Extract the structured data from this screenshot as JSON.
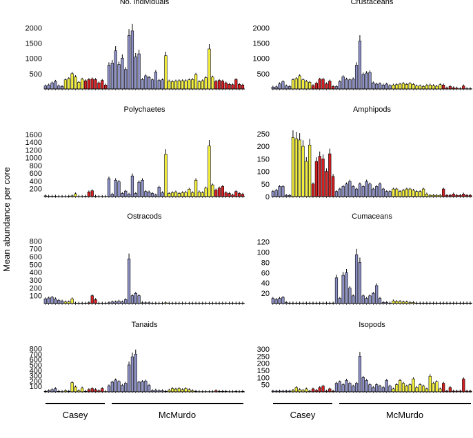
{
  "ylabel": "Mean abundance per core",
  "sites": [
    "Casey",
    "McMurdo"
  ],
  "colors": {
    "blue": "#8e91c6",
    "yellow": "#f2ee3c",
    "red": "#d62024",
    "axis": "#000000"
  },
  "chart_data": [
    {
      "type": "bar",
      "title": "No. individuals",
      "yticks": [
        500,
        1000,
        1500,
        2000
      ],
      "ylim": [
        0,
        2100
      ],
      "series": [
        {
          "color": "blue",
          "values": [
            100,
            130,
            200,
            250,
            100,
            80
          ]
        },
        {
          "color": "yellow",
          "values": [
            300,
            340,
            500,
            400,
            220,
            320
          ]
        },
        {
          "color": "red",
          "values": [
            270,
            310,
            330,
            310,
            200,
            280,
            130
          ]
        },
        {
          "color": "blue",
          "values": [
            780,
            850,
            1250,
            800,
            1010,
            640,
            1750,
            1900,
            1050,
            1150,
            310,
            430,
            380,
            300,
            550,
            280,
            300
          ]
        },
        {
          "color": "yellow",
          "values": [
            1090,
            260,
            240,
            260,
            270,
            270,
            270,
            300,
            310,
            470,
            240,
            270,
            370,
            1310,
            390
          ]
        },
        {
          "color": "red",
          "values": [
            250,
            280,
            260,
            200,
            150,
            140,
            310,
            150,
            130
          ]
        }
      ]
    },
    {
      "type": "bar",
      "title": "Crustaceans",
      "yticks": [
        500,
        1000,
        1500,
        2000
      ],
      "ylim": [
        0,
        2100
      ],
      "series": [
        {
          "color": "blue",
          "values": [
            60,
            70,
            170,
            240,
            100,
            80
          ]
        },
        {
          "color": "yellow",
          "values": [
            300,
            340,
            430,
            300,
            250,
            220
          ]
        },
        {
          "color": "red",
          "values": [
            110,
            190,
            320,
            320,
            170,
            260,
            80
          ]
        },
        {
          "color": "blue",
          "values": [
            80,
            240,
            400,
            320,
            300,
            330,
            780,
            1570,
            480,
            520,
            540,
            200,
            160,
            170,
            130,
            160,
            110
          ]
        },
        {
          "color": "yellow",
          "values": [
            130,
            140,
            160,
            180,
            150,
            180,
            150,
            100,
            100,
            80,
            120,
            130,
            110,
            90,
            140
          ]
        },
        {
          "color": "red",
          "values": [
            130,
            30,
            80,
            40,
            30,
            10,
            100,
            10,
            10
          ]
        }
      ]
    },
    {
      "type": "bar",
      "title": "Polychaetes",
      "yticks": [
        200,
        400,
        600,
        800,
        1000,
        1200,
        1400,
        1600
      ],
      "ylim": [
        0,
        1650
      ],
      "series": [
        {
          "color": "blue",
          "values": [
            20,
            10,
            10,
            10,
            5,
            5
          ]
        },
        {
          "color": "yellow",
          "values": [
            5,
            10,
            20,
            70,
            5,
            5
          ]
        },
        {
          "color": "red",
          "values": [
            10,
            120,
            150,
            10,
            5,
            5,
            5
          ]
        },
        {
          "color": "blue",
          "values": [
            460,
            60,
            420,
            380,
            80,
            140,
            60,
            530,
            80,
            370,
            420,
            130,
            120,
            80,
            40,
            240,
            100
          ]
        },
        {
          "color": "yellow",
          "values": [
            1090,
            80,
            100,
            120,
            80,
            100,
            110,
            190,
            100,
            420,
            120,
            100,
            220,
            1300,
            300
          ]
        },
        {
          "color": "red",
          "values": [
            170,
            220,
            260,
            100,
            80,
            40,
            130,
            80,
            60
          ]
        }
      ]
    },
    {
      "type": "bar",
      "title": "Amphipods",
      "yticks": [
        0,
        50,
        100,
        150,
        200,
        250
      ],
      "ylim": [
        0,
        255
      ],
      "series": [
        {
          "color": "blue",
          "values": [
            20,
            25,
            40,
            40,
            5,
            5
          ]
        },
        {
          "color": "yellow",
          "values": [
            235,
            230,
            225,
            200,
            140,
            205
          ]
        },
        {
          "color": "red",
          "values": [
            50,
            140,
            160,
            150,
            100,
            170,
            80
          ]
        },
        {
          "color": "blue",
          "values": [
            20,
            30,
            40,
            50,
            60,
            40,
            30,
            50,
            40,
            60,
            50,
            30,
            40,
            50,
            30,
            20,
            20
          ]
        },
        {
          "color": "yellow",
          "values": [
            30,
            30,
            20,
            25,
            30,
            30,
            25,
            20,
            20,
            30,
            10,
            5,
            5,
            5,
            5
          ]
        },
        {
          "color": "red",
          "values": [
            30,
            5,
            5,
            10,
            5,
            5,
            10,
            5,
            5
          ]
        }
      ]
    },
    {
      "type": "bar",
      "title": "Ostracods",
      "yticks": [
        100,
        200,
        300,
        400,
        500,
        600,
        700,
        800
      ],
      "ylim": [
        0,
        820
      ],
      "series": [
        {
          "color": "blue",
          "values": [
            60,
            70,
            80,
            60,
            40,
            30
          ]
        },
        {
          "color": "yellow",
          "values": [
            20,
            20,
            60,
            5,
            5,
            5
          ]
        },
        {
          "color": "red",
          "values": [
            5,
            10,
            100,
            50,
            5,
            5,
            5
          ]
        },
        {
          "color": "blue",
          "values": [
            10,
            20,
            20,
            30,
            20,
            50,
            570,
            100,
            130,
            100,
            10,
            10,
            10,
            5,
            5,
            5,
            5
          ]
        },
        {
          "color": "yellow",
          "values": [
            10,
            5,
            5,
            5,
            5,
            5,
            5,
            5,
            5,
            5,
            5,
            5,
            5,
            5,
            5
          ]
        },
        {
          "color": "red",
          "values": [
            5,
            5,
            5,
            5,
            5,
            5,
            5,
            5,
            5
          ]
        }
      ]
    },
    {
      "type": "bar",
      "title": "Cumaceans",
      "yticks": [
        20,
        40,
        60,
        80,
        100,
        120
      ],
      "ylim": [
        0,
        125
      ],
      "series": [
        {
          "color": "blue",
          "values": [
            10,
            8,
            10,
            12,
            2,
            1
          ]
        },
        {
          "color": "yellow",
          "values": [
            1,
            1,
            1,
            1,
            1,
            1
          ]
        },
        {
          "color": "red",
          "values": [
            1,
            1,
            1,
            1,
            1,
            1,
            1
          ]
        },
        {
          "color": "blue",
          "values": [
            50,
            10,
            55,
            60,
            30,
            15,
            95,
            80,
            15,
            10,
            15,
            20,
            35,
            10,
            2,
            2,
            1
          ]
        },
        {
          "color": "yellow",
          "values": [
            5,
            4,
            4,
            3,
            3,
            2,
            2,
            1,
            1,
            1,
            1,
            1,
            1,
            1,
            1
          ]
        },
        {
          "color": "red",
          "values": [
            1,
            1,
            1,
            1,
            1,
            1,
            1,
            1,
            1
          ]
        }
      ]
    },
    {
      "type": "bar",
      "title": "Tanaids",
      "yticks": [
        100,
        200,
        300,
        400,
        500,
        600,
        700,
        800
      ],
      "ylim": [
        0,
        820
      ],
      "series": [
        {
          "color": "blue",
          "values": [
            10,
            20,
            40,
            60,
            10,
            5
          ]
        },
        {
          "color": "yellow",
          "values": [
            20,
            10,
            170,
            90,
            20,
            70
          ]
        },
        {
          "color": "red",
          "values": [
            10,
            40,
            60,
            40,
            20,
            60,
            5
          ]
        },
        {
          "color": "blue",
          "values": [
            110,
            180,
            220,
            190,
            120,
            160,
            500,
            650,
            700,
            180,
            190,
            200,
            120,
            20,
            30,
            20,
            20
          ]
        },
        {
          "color": "yellow",
          "values": [
            10,
            30,
            60,
            50,
            60,
            40,
            60,
            40,
            20,
            10,
            5,
            5,
            5,
            5,
            5
          ]
        },
        {
          "color": "red",
          "values": [
            20,
            10,
            10,
            10,
            5,
            5,
            10,
            5,
            10
          ]
        }
      ]
    },
    {
      "type": "bar",
      "title": "Isopods",
      "yticks": [
        50,
        100,
        150,
        200,
        250,
        300
      ],
      "ylim": [
        0,
        310
      ],
      "series": [
        {
          "color": "blue",
          "values": [
            5,
            5,
            5,
            5,
            5,
            5
          ]
        },
        {
          "color": "yellow",
          "values": [
            10,
            30,
            15,
            10,
            20,
            5
          ]
        },
        {
          "color": "red",
          "values": [
            20,
            10,
            30,
            40,
            5,
            20,
            5
          ]
        },
        {
          "color": "blue",
          "values": [
            60,
            70,
            50,
            80,
            60,
            40,
            60,
            250,
            100,
            80,
            50,
            30,
            50,
            40,
            30,
            80,
            40
          ]
        },
        {
          "color": "yellow",
          "values": [
            20,
            50,
            80,
            60,
            40,
            50,
            90,
            30,
            50,
            40,
            20,
            110,
            60,
            70,
            20
          ]
        },
        {
          "color": "red",
          "values": [
            60,
            5,
            30,
            5,
            5,
            5,
            90,
            5,
            5
          ]
        }
      ]
    }
  ]
}
